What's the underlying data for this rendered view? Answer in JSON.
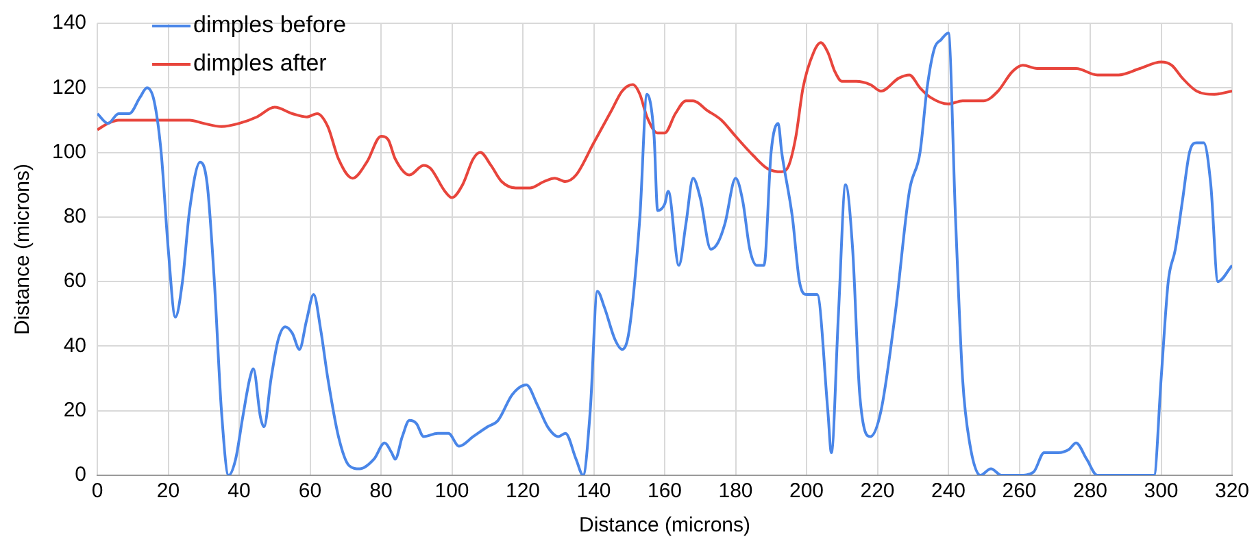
{
  "chart_data": {
    "type": "line",
    "xlabel": "Distance (microns)",
    "ylabel": "Distance (microns)",
    "xlim": [
      0,
      320
    ],
    "xticks": [
      0,
      20,
      40,
      60,
      80,
      100,
      120,
      140,
      160,
      180,
      200,
      220,
      240,
      260,
      280,
      300,
      320
    ],
    "ylim": [
      0,
      140
    ],
    "yticks": [
      0,
      20,
      40,
      60,
      80,
      100,
      120,
      140
    ],
    "grid": true,
    "legend": "top left",
    "series": [
      {
        "name": "dimples before",
        "color": "#4a86e8",
        "x": [
          0,
          3,
          6,
          9,
          12,
          14,
          16,
          18,
          20,
          22,
          24,
          26,
          29,
          31,
          33,
          35,
          37,
          39,
          41,
          43,
          44,
          46,
          47,
          49,
          51,
          53,
          55,
          57,
          59,
          61,
          63,
          65,
          68,
          71,
          74,
          78,
          81,
          83,
          84,
          86,
          88,
          90,
          92,
          96,
          99,
          102,
          106,
          110,
          113,
          117,
          121,
          124,
          127,
          130,
          132,
          135,
          137,
          139,
          141,
          143,
          146,
          148,
          150,
          153,
          155,
          157,
          158,
          160,
          161,
          164,
          166,
          168,
          170,
          173,
          175,
          177,
          180,
          182,
          184,
          186,
          188,
          190,
          192,
          193,
          196,
          198,
          200,
          203,
          206,
          207,
          209,
          211,
          213,
          215,
          218,
          221,
          225,
          229,
          232,
          234,
          236,
          238,
          240,
          242,
          244,
          246,
          249,
          252,
          255,
          260,
          264,
          267,
          271,
          274,
          276,
          279,
          282,
          290,
          298,
          300,
          302,
          304,
          306,
          308,
          310,
          312,
          314,
          316,
          320
        ],
        "values": [
          112,
          109,
          112,
          112,
          117,
          120,
          116,
          100,
          70,
          49,
          60,
          82,
          97,
          90,
          60,
          20,
          0,
          5,
          18,
          30,
          33,
          18,
          15,
          30,
          42,
          46,
          44,
          39,
          48,
          56,
          45,
          30,
          12,
          3,
          2,
          5,
          10,
          7,
          5,
          12,
          17,
          16,
          12,
          13,
          13,
          9,
          12,
          15,
          17,
          25,
          28,
          22,
          15,
          12,
          13,
          5,
          0,
          20,
          57,
          52,
          42,
          39,
          45,
          80,
          118,
          105,
          82,
          84,
          88,
          65,
          78,
          92,
          86,
          70,
          72,
          78,
          92,
          85,
          70,
          65,
          65,
          100,
          109,
          100,
          80,
          60,
          56,
          56,
          20,
          7,
          50,
          90,
          70,
          25,
          12,
          20,
          50,
          88,
          100,
          120,
          132,
          135,
          137,
          80,
          30,
          10,
          0,
          2,
          0,
          0,
          1,
          7,
          7,
          8,
          10,
          5,
          0,
          0,
          0,
          30,
          60,
          70,
          85,
          100,
          103,
          103,
          90,
          60,
          65
        ]
      },
      {
        "name": "dimples after",
        "color": "#e8453c",
        "x": [
          0,
          3,
          6,
          10,
          14,
          18,
          22,
          26,
          30,
          35,
          40,
          45,
          50,
          55,
          59,
          62,
          65,
          68,
          72,
          76,
          80,
          82,
          84,
          88,
          92,
          94,
          98,
          100,
          103,
          106,
          108,
          111,
          114,
          118,
          122,
          126,
          129,
          132,
          135,
          140,
          145,
          148,
          151,
          153,
          155,
          158,
          160,
          163,
          166,
          168,
          172,
          176,
          180,
          185,
          189,
          193,
          195,
          197,
          199,
          202,
          204,
          206,
          208,
          210,
          214,
          218,
          221,
          226,
          229,
          232,
          235,
          240,
          244,
          250,
          254,
          258,
          261,
          265,
          270,
          276,
          282,
          288,
          294,
          300,
          303,
          306,
          310,
          315,
          320
        ],
        "values": [
          107,
          109,
          110,
          110,
          110,
          110,
          110,
          110,
          109,
          108,
          109,
          111,
          114,
          112,
          111,
          112,
          108,
          98,
          92,
          97,
          105,
          104,
          98,
          93,
          96,
          95,
          88,
          86,
          90,
          98,
          100,
          96,
          91,
          89,
          89,
          91,
          92,
          91,
          93,
          103,
          113,
          119,
          121,
          118,
          111,
          106,
          106,
          112,
          116,
          116,
          113,
          110,
          105,
          99,
          95,
          94,
          96,
          105,
          120,
          131,
          134,
          131,
          125,
          122,
          122,
          121,
          119,
          123,
          124,
          120,
          117,
          115,
          116,
          116,
          119,
          125,
          127,
          126,
          126,
          126,
          124,
          124,
          126,
          128,
          127,
          123,
          119,
          118,
          119
        ]
      }
    ]
  }
}
